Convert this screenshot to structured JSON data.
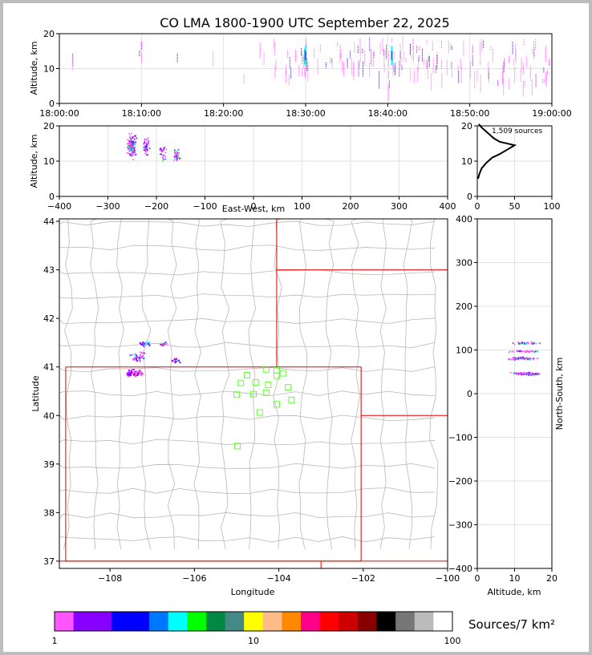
{
  "title": "CO LMA 1800-1900 UTC September 22, 2025",
  "colors": {
    "state_border": "#e00000",
    "county_border": "#b8b8b8",
    "station": "#66ff33",
    "grid": "#e2e2e2"
  },
  "chart_data": [
    {
      "id": "time-altitude",
      "type": "scatter",
      "ylabel": "Altitude, km",
      "ylim": [
        0,
        20
      ],
      "yticks": [
        "0",
        "10",
        "20"
      ],
      "xticks": [
        "18:00:00",
        "18:10:00",
        "18:20:00",
        "18:30:00",
        "18:40:00",
        "18:50:00",
        "19:00:00"
      ],
      "xlim_minutes": [
        0,
        60
      ],
      "grid": true,
      "activity": [
        {
          "t": 1.5,
          "zmin": 13,
          "zmax": 17,
          "n": 2
        },
        {
          "t": 9.7,
          "zmin": 14,
          "zmax": 19,
          "n": 3
        },
        {
          "t": 14.5,
          "zmin": 14,
          "zmax": 15,
          "n": 1
        },
        {
          "t": 18.8,
          "zmin": 14,
          "zmax": 16,
          "n": 1
        },
        {
          "t": 22.8,
          "zmin": 8,
          "zmax": 9,
          "n": 1
        },
        {
          "t": 24.5,
          "zmin": 12,
          "zmax": 18,
          "n": 2
        },
        {
          "t": 26.2,
          "zmin": 10,
          "zmax": 19,
          "n": 4
        },
        {
          "t": 27.8,
          "zmin": 8,
          "zmax": 19,
          "n": 6
        },
        {
          "t": 29.2,
          "zmin": 9,
          "zmax": 19,
          "n": 5
        },
        {
          "t": 30.0,
          "zmin": 7,
          "zmax": 19,
          "n": 10
        },
        {
          "t": 31.5,
          "zmin": 12,
          "zmax": 18,
          "n": 3
        },
        {
          "t": 32.8,
          "zmin": 11,
          "zmax": 17,
          "n": 4
        },
        {
          "t": 34.2,
          "zmin": 9,
          "zmax": 20,
          "n": 6
        },
        {
          "t": 35.5,
          "zmin": 8,
          "zmax": 20,
          "n": 7
        },
        {
          "t": 36.8,
          "zmin": 10,
          "zmax": 20,
          "n": 8
        },
        {
          "t": 38.2,
          "zmin": 9,
          "zmax": 19,
          "n": 7
        },
        {
          "t": 39.4,
          "zmin": 8,
          "zmax": 19,
          "n": 7
        },
        {
          "t": 40.5,
          "zmin": 5,
          "zmax": 20,
          "n": 12
        },
        {
          "t": 41.8,
          "zmin": 10,
          "zmax": 20,
          "n": 8
        },
        {
          "t": 42.8,
          "zmin": 8,
          "zmax": 19,
          "n": 7
        },
        {
          "t": 44.0,
          "zmin": 9,
          "zmax": 19,
          "n": 7
        },
        {
          "t": 45.2,
          "zmin": 8,
          "zmax": 20,
          "n": 9
        },
        {
          "t": 46.3,
          "zmin": 7,
          "zmax": 19,
          "n": 6
        },
        {
          "t": 47.5,
          "zmin": 9,
          "zmax": 19,
          "n": 6
        },
        {
          "t": 48.8,
          "zmin": 8,
          "zmax": 19,
          "n": 6
        },
        {
          "t": 50.2,
          "zmin": 9,
          "zmax": 19,
          "n": 5
        },
        {
          "t": 51.3,
          "zmin": 6,
          "zmax": 19,
          "n": 6
        },
        {
          "t": 52.4,
          "zmin": 8,
          "zmax": 18,
          "n": 5
        },
        {
          "t": 53.8,
          "zmin": 6,
          "zmax": 14,
          "n": 6
        },
        {
          "t": 55.2,
          "zmin": 7,
          "zmax": 19,
          "n": 7
        },
        {
          "t": 56.5,
          "zmin": 6,
          "zmax": 20,
          "n": 8
        },
        {
          "t": 57.8,
          "zmin": 6,
          "zmax": 20,
          "n": 8
        },
        {
          "t": 59.3,
          "zmin": 6,
          "zmax": 20,
          "n": 8
        }
      ]
    },
    {
      "id": "east-west-altitude",
      "type": "scatter",
      "xlabel": "East-West, km",
      "ylabel": "Altitude, km",
      "xlim": [
        -400,
        400
      ],
      "ylim": [
        0,
        20
      ],
      "xticks": [
        "−400",
        "−300",
        "−200",
        "−100",
        "0",
        "100",
        "200",
        "300",
        "400"
      ],
      "yticks": [
        "0",
        "10",
        "20"
      ],
      "grid": true,
      "clusters": [
        {
          "x": -252,
          "dx": 12,
          "z": 14.5,
          "dz": 4.5,
          "n": 160
        },
        {
          "x": -222,
          "dx": 8,
          "z": 14,
          "dz": 4,
          "n": 50
        },
        {
          "x": -188,
          "dx": 10,
          "z": 12,
          "dz": 3,
          "n": 28
        },
        {
          "x": -160,
          "dx": 9,
          "z": 11.5,
          "dz": 2.5,
          "n": 42
        }
      ]
    },
    {
      "id": "altitude-histogram",
      "type": "line",
      "annotation": "1,509 sources",
      "xlim": [
        0,
        100
      ],
      "ylim": [
        0,
        20
      ],
      "xticks": [
        "0",
        "50",
        "100"
      ],
      "yticks": [
        "0",
        "10",
        "20"
      ],
      "grid": true,
      "profile": [
        {
          "count": 1,
          "z": 5
        },
        {
          "count": 3,
          "z": 6.5
        },
        {
          "count": 6,
          "z": 8
        },
        {
          "count": 12,
          "z": 9.5
        },
        {
          "count": 20,
          "z": 11
        },
        {
          "count": 30,
          "z": 12
        },
        {
          "count": 38,
          "z": 13
        },
        {
          "count": 50,
          "z": 14.5
        },
        {
          "count": 30,
          "z": 15.5
        },
        {
          "count": 22,
          "z": 16.5
        },
        {
          "count": 14,
          "z": 18
        },
        {
          "count": 6,
          "z": 19.5
        },
        {
          "count": 2,
          "z": 20.5
        }
      ]
    },
    {
      "id": "plan-view-map",
      "type": "scatter",
      "xlabel": "Longitude",
      "ylabel": "Latitude",
      "xlim": [
        -109.2,
        -100.0
      ],
      "ylim": [
        36.85,
        44.05
      ],
      "xticks": [
        "−108",
        "−106",
        "−104",
        "−102",
        "−100"
      ],
      "yticks": [
        "37",
        "38",
        "39",
        "40",
        "41",
        "42",
        "43",
        "44"
      ],
      "clusters": [
        {
          "lon": -107.45,
          "dlon": 0.28,
          "lat": 40.88,
          "dlat": 0.1,
          "n": 70
        },
        {
          "lon": -107.35,
          "dlon": 0.22,
          "lat": 41.22,
          "dlat": 0.12,
          "n": 35
        },
        {
          "lon": -107.2,
          "dlon": 0.18,
          "lat": 41.5,
          "dlat": 0.08,
          "n": 22
        },
        {
          "lon": -106.75,
          "dlon": 0.12,
          "lat": 41.48,
          "dlat": 0.05,
          "n": 14
        },
        {
          "lon": -106.45,
          "dlon": 0.15,
          "lat": 41.15,
          "dlat": 0.05,
          "n": 18
        }
      ],
      "stations": [
        {
          "lon": -104.3,
          "lat": 40.95
        },
        {
          "lon": -104.05,
          "lat": 40.93
        },
        {
          "lon": -104.05,
          "lat": 40.82
        },
        {
          "lon": -103.9,
          "lat": 40.87
        },
        {
          "lon": -104.75,
          "lat": 40.83
        },
        {
          "lon": -104.9,
          "lat": 40.67
        },
        {
          "lon": -104.55,
          "lat": 40.68
        },
        {
          "lon": -104.25,
          "lat": 40.63
        },
        {
          "lon": -103.78,
          "lat": 40.58
        },
        {
          "lon": -105.0,
          "lat": 40.43
        },
        {
          "lon": -104.6,
          "lat": 40.44
        },
        {
          "lon": -104.3,
          "lat": 40.47
        },
        {
          "lon": -103.7,
          "lat": 40.32
        },
        {
          "lon": -104.05,
          "lat": 40.23
        },
        {
          "lon": -104.45,
          "lat": 40.06
        },
        {
          "lon": -104.98,
          "lat": 39.37
        }
      ]
    },
    {
      "id": "altitude-north-south",
      "type": "scatter",
      "xlabel": "Altitude, km",
      "ylabel": "North-South, km",
      "xlim": [
        0,
        20
      ],
      "ylim": [
        -400,
        400
      ],
      "xticks": [
        "0",
        "10",
        "20"
      ],
      "yticks": [
        "−400",
        "−300",
        "−200",
        "−100",
        "0",
        "100",
        "200",
        "300",
        "400"
      ],
      "grid": true,
      "clusters": [
        {
          "z": 13,
          "dz": 5,
          "y": 47,
          "dy": 4,
          "n": 130
        },
        {
          "z": 12,
          "dz": 5,
          "y": 82,
          "dy": 5,
          "n": 70
        },
        {
          "z": 12,
          "dz": 5,
          "y": 98,
          "dy": 3,
          "n": 35
        },
        {
          "z": 13,
          "dz": 5,
          "y": 117,
          "dy": 4,
          "n": 45
        }
      ]
    }
  ],
  "colorbar": {
    "label": "Sources/7 km²",
    "tick_labels": [
      "1",
      "10",
      "100"
    ],
    "colors": [
      "#ff55ff",
      "#8800ff",
      "#8800ff",
      "#0000ff",
      "#0000ff",
      "#0077ff",
      "#00ffff",
      "#00ff00",
      "#008844",
      "#448888",
      "#ffff00",
      "#ffbb88",
      "#ff8800",
      "#ff0088",
      "#ff0000",
      "#cc0000",
      "#880000",
      "#000000",
      "#777777",
      "#bbbbbb",
      "#ffffff"
    ]
  }
}
